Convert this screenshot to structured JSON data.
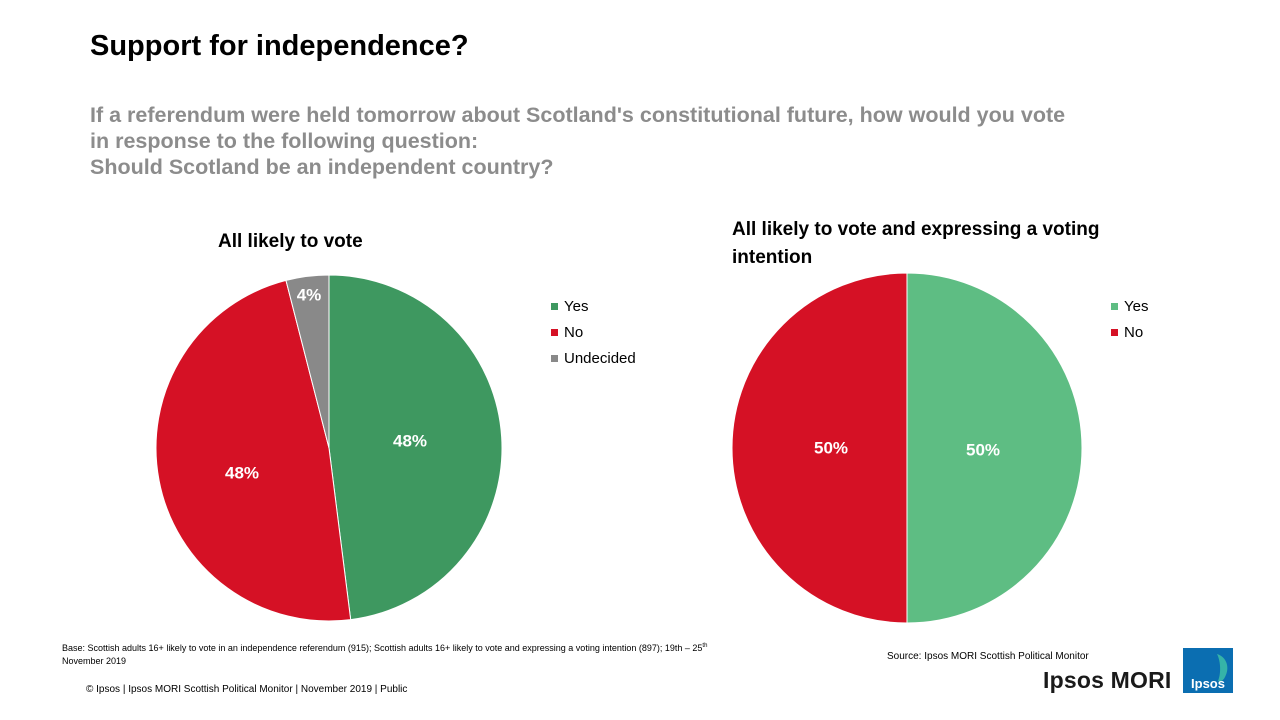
{
  "header": {
    "title": "Support for independence?",
    "subtitle_lines": [
      "If a referendum were held tomorrow about Scotland's constitutional future, how would you vote",
      "in response to the following question:",
      "Should Scotland be an independent country?"
    ]
  },
  "chart_data": [
    {
      "type": "pie",
      "title": "All likely  to vote",
      "slices": [
        {
          "label": "Yes",
          "value": 48,
          "display": "48%",
          "color": "#3e9860"
        },
        {
          "label": "No",
          "value": 48,
          "display": "48%",
          "color": "#d51125"
        },
        {
          "label": "Undecided",
          "value": 4,
          "display": "4%",
          "color": "#898989"
        }
      ],
      "legend": [
        "Yes",
        "No",
        "Undecided"
      ],
      "legend_position": "right"
    },
    {
      "type": "pie",
      "title": "All likely  to vote and expressing a voting intention",
      "slices": [
        {
          "label": "Yes",
          "value": 50,
          "display": "50%",
          "color": "#5ebd83"
        },
        {
          "label": "No",
          "value": 50,
          "display": "50%",
          "color": "#d51125"
        }
      ],
      "legend": [
        "Yes",
        "No"
      ],
      "legend_position": "right"
    }
  ],
  "notes": {
    "base_prefix": "Base: Scottish adults 16+ likely to vote in an independence referendum (915); Scottish adults 16+ likely to vote and expressing a voting intention (897); 19th – 25",
    "base_sup": "th",
    "base_suffix": " November 2019",
    "source": "Source: Ipsos MORI Scottish Political Monitor",
    "footer": "© Ipsos | Ipsos MORI  Scottish Political Monitor | November 2019 | Public"
  },
  "brand": {
    "wordmark": "Ipsos MORI",
    "logo_text": "Ipsos",
    "logo_color": "#0b6eb1",
    "logo_accent": "#35b3a8"
  }
}
